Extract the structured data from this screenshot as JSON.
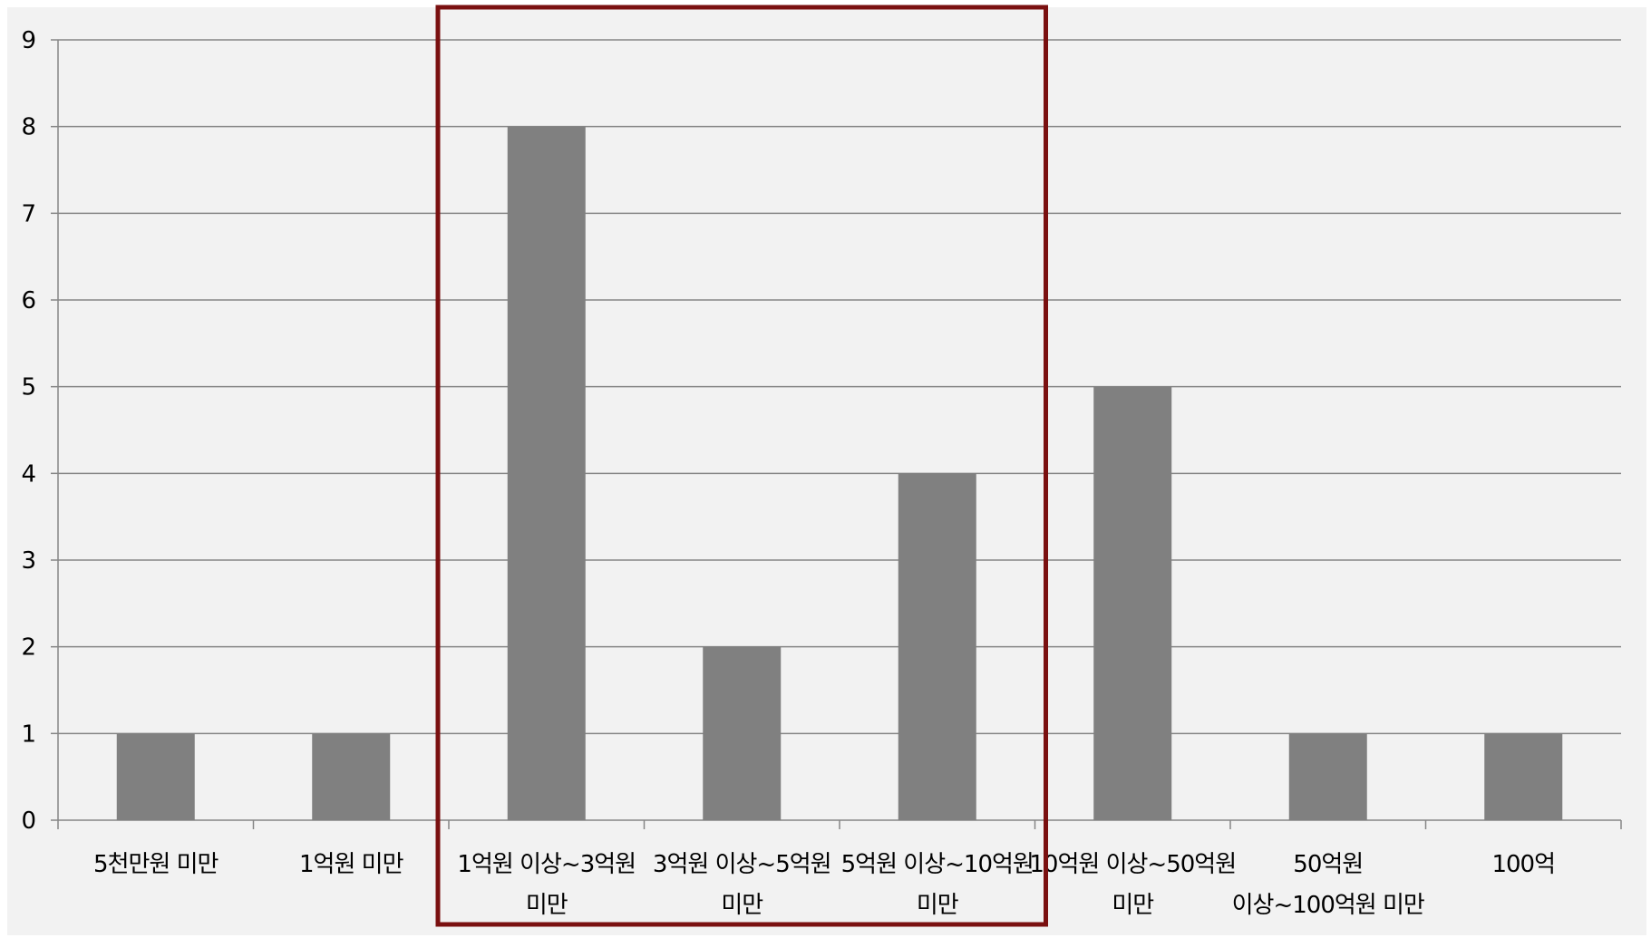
{
  "colors": {
    "plot_background": "#f2f2f2",
    "bar": "#808080",
    "gridline": "#868686",
    "axis": "#868686",
    "highlight_box": "#7a1010"
  },
  "chart_data": {
    "type": "bar",
    "title": "",
    "xlabel": "",
    "ylabel": "",
    "ylim": [
      0,
      9
    ],
    "yticks": [
      0,
      1,
      2,
      3,
      4,
      5,
      6,
      7,
      8,
      9
    ],
    "grid": true,
    "legend": "none",
    "categories": [
      "5천만원 미만",
      "1억원 미만",
      "1억원 이상~3억원 미만",
      "3억원 이상~5억원 미만",
      "5억원 이상~10억원 미만",
      "10억원 이상~50억원 미만",
      "50억원 이상~100억원 미만",
      "100억"
    ],
    "category_label_lines": [
      [
        "5천만원 미만"
      ],
      [
        "1억원 미만"
      ],
      [
        "1억원 이상~3억원",
        "미만"
      ],
      [
        "3억원 이상~5억원",
        "미만"
      ],
      [
        "5억원 이상~10억원",
        "미만"
      ],
      [
        "10억원 이상~50억원",
        "미만"
      ],
      [
        "50억원",
        "이상~100억원 미만"
      ],
      [
        "100억"
      ]
    ],
    "values": [
      1,
      1,
      8,
      2,
      4,
      5,
      1,
      1
    ],
    "highlight": {
      "from_category": "1억원 이상~3억원 미만",
      "to_category": "5억원 이상~10억원 미만"
    }
  }
}
